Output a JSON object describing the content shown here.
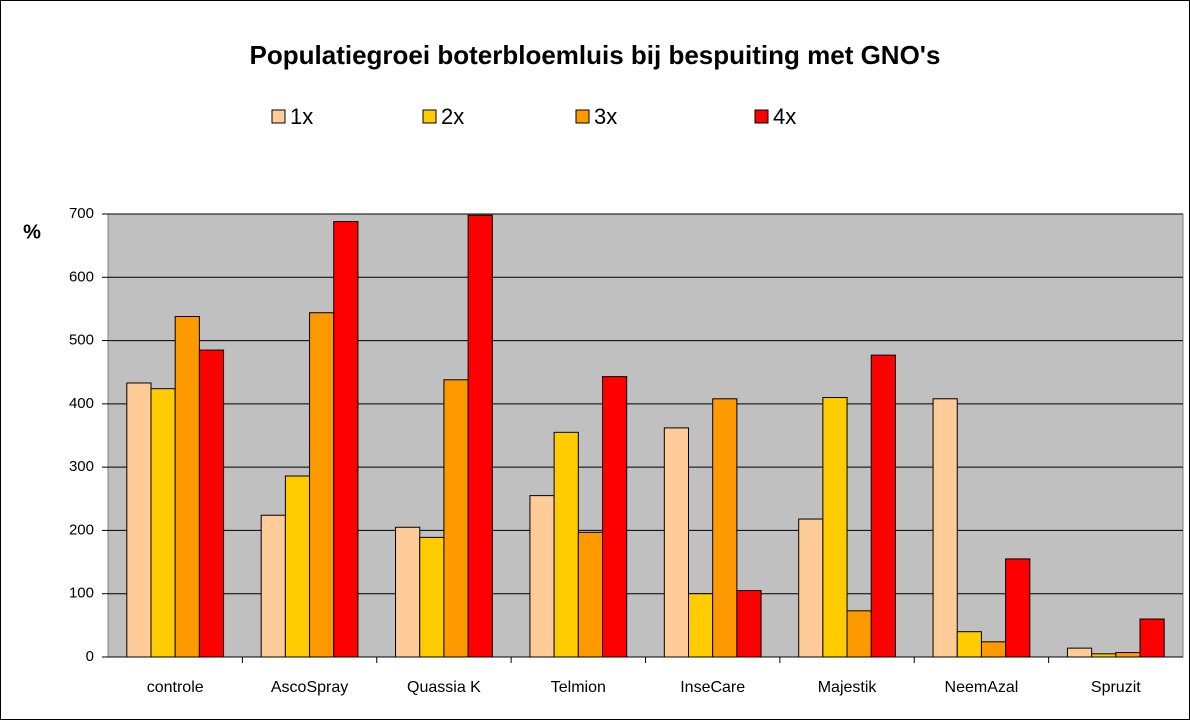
{
  "chart_data": {
    "type": "bar",
    "title": "Populatiegroei boterbloemluis bij bespuiting met GNO's",
    "y_label": "%",
    "categories": [
      "controle",
      "AscoSpray",
      "Quassia K",
      "Telmion",
      "InseCare",
      "Majestik",
      "NeemAzal",
      "Spruzit"
    ],
    "series": [
      {
        "name": "1x",
        "color": "#ffcc99",
        "values": [
          433,
          224,
          205,
          255,
          362,
          218,
          408,
          14
        ]
      },
      {
        "name": "2x",
        "color": "#ffcc00",
        "values": [
          424,
          286,
          189,
          355,
          100,
          410,
          40,
          5
        ]
      },
      {
        "name": "3x",
        "color": "#ff9900",
        "values": [
          538,
          544,
          438,
          197,
          408,
          73,
          24,
          7
        ]
      },
      {
        "name": "4x",
        "color": "#ff0000",
        "values": [
          485,
          688,
          698,
          443,
          105,
          477,
          155,
          60
        ]
      }
    ],
    "ylim": [
      0,
      700
    ],
    "yticks": [
      0,
      100,
      200,
      300,
      400,
      500,
      600,
      700
    ],
    "grid": true,
    "legend": "top",
    "plot_background": "#c0c0c0"
  }
}
